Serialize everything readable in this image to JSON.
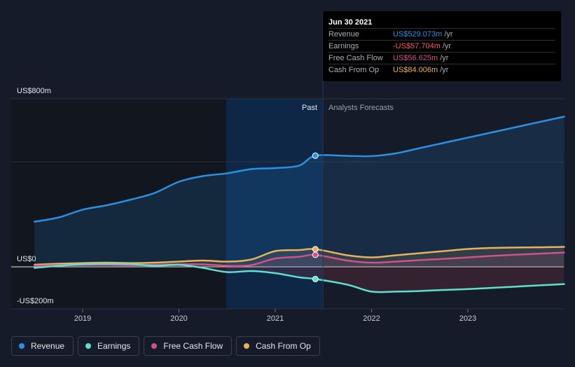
{
  "chart_data": {
    "type": "line",
    "y_axis": {
      "top_label": "US$800m",
      "zero_label": "US$0",
      "bottom_label": "-US$200m",
      "ylim": [
        -200,
        800
      ]
    },
    "x_ticks": [
      "2019",
      "2020",
      "2021",
      "2022",
      "2023"
    ],
    "period_labels": {
      "past": "Past",
      "forecast": "Analysts Forecasts"
    },
    "colors": {
      "revenue": "#2d8fe0",
      "earnings": "#5de0cc",
      "free_cash_flow": "#d0528a",
      "cash_from_op": "#e8b15e",
      "background": "#151b28"
    },
    "series": [
      {
        "name": "Revenue",
        "key": "revenue",
        "points": [
          [
            "2018-07",
            215
          ],
          [
            "2018-10",
            235
          ],
          [
            "2019-01",
            272
          ],
          [
            "2019-04",
            293
          ],
          [
            "2019-07",
            320
          ],
          [
            "2019-10",
            352
          ],
          [
            "2020-01",
            405
          ],
          [
            "2020-04",
            432
          ],
          [
            "2020-07",
            445
          ],
          [
            "2020-10",
            465
          ],
          [
            "2021-01",
            470
          ],
          [
            "2021-04",
            482
          ],
          [
            "2021-06",
            529
          ],
          [
            "2021-10",
            528
          ],
          [
            "2022-01",
            527
          ],
          [
            "2022-04",
            540
          ],
          [
            "2022-07",
            565
          ],
          [
            "2022-10",
            590
          ],
          [
            "2023-01",
            615
          ],
          [
            "2023-04",
            640
          ],
          [
            "2023-07",
            665
          ],
          [
            "2023-10",
            690
          ],
          [
            "2024-01",
            715
          ]
        ]
      },
      {
        "name": "Earnings",
        "key": "earnings",
        "points": [
          [
            "2018-07",
            -5
          ],
          [
            "2018-10",
            5
          ],
          [
            "2019-01",
            12
          ],
          [
            "2019-04",
            14
          ],
          [
            "2019-07",
            13
          ],
          [
            "2019-10",
            5
          ],
          [
            "2020-01",
            10
          ],
          [
            "2020-04",
            -5
          ],
          [
            "2020-07",
            -25
          ],
          [
            "2020-10",
            -20
          ],
          [
            "2021-01",
            -30
          ],
          [
            "2021-04",
            -50
          ],
          [
            "2021-06",
            -58
          ],
          [
            "2021-10",
            -85
          ],
          [
            "2022-01",
            -118
          ],
          [
            "2022-04",
            -118
          ],
          [
            "2022-07",
            -115
          ],
          [
            "2022-10",
            -110
          ],
          [
            "2023-01",
            -106
          ],
          [
            "2023-04",
            -100
          ],
          [
            "2023-07",
            -94
          ],
          [
            "2023-10",
            -88
          ],
          [
            "2024-01",
            -82
          ]
        ]
      },
      {
        "name": "Free Cash Flow",
        "key": "free_cash_flow",
        "points": [
          [
            "2018-07",
            5
          ],
          [
            "2018-10",
            8
          ],
          [
            "2019-01",
            10
          ],
          [
            "2019-04",
            10
          ],
          [
            "2019-07",
            8
          ],
          [
            "2019-10",
            10
          ],
          [
            "2020-01",
            12
          ],
          [
            "2020-04",
            12
          ],
          [
            "2020-07",
            5
          ],
          [
            "2020-10",
            8
          ],
          [
            "2021-01",
            40
          ],
          [
            "2021-04",
            48
          ],
          [
            "2021-06",
            57
          ],
          [
            "2021-10",
            30
          ],
          [
            "2022-01",
            20
          ],
          [
            "2022-04",
            25
          ],
          [
            "2022-07",
            32
          ],
          [
            "2022-10",
            38
          ],
          [
            "2023-01",
            45
          ],
          [
            "2023-04",
            52
          ],
          [
            "2023-07",
            58
          ],
          [
            "2023-10",
            63
          ],
          [
            "2024-01",
            68
          ]
        ]
      },
      {
        "name": "Cash From Op",
        "key": "cash_from_op",
        "points": [
          [
            "2018-07",
            10
          ],
          [
            "2018-10",
            15
          ],
          [
            "2019-01",
            18
          ],
          [
            "2019-04",
            20
          ],
          [
            "2019-07",
            18
          ],
          [
            "2019-10",
            20
          ],
          [
            "2020-01",
            25
          ],
          [
            "2020-04",
            30
          ],
          [
            "2020-07",
            25
          ],
          [
            "2020-10",
            35
          ],
          [
            "2021-01",
            75
          ],
          [
            "2021-04",
            80
          ],
          [
            "2021-06",
            84
          ],
          [
            "2021-10",
            55
          ],
          [
            "2022-01",
            45
          ],
          [
            "2022-04",
            55
          ],
          [
            "2022-07",
            65
          ],
          [
            "2022-10",
            75
          ],
          [
            "2023-01",
            85
          ],
          [
            "2023-04",
            90
          ],
          [
            "2023-07",
            92
          ],
          [
            "2023-10",
            93
          ],
          [
            "2024-01",
            95
          ]
        ]
      }
    ],
    "tooltip": {
      "date": "Jun 30 2021",
      "rows": [
        {
          "name": "Revenue",
          "value": "US$529.073m",
          "unit": "/yr",
          "key": "revenue"
        },
        {
          "name": "Earnings",
          "value": "-US$57.704m",
          "unit": "/yr",
          "key": "earnings"
        },
        {
          "name": "Free Cash Flow",
          "value": "US$56.625m",
          "unit": "/yr",
          "key": "free_cash_flow"
        },
        {
          "name": "Cash From Op",
          "value": "US$84.006m",
          "unit": "/yr",
          "key": "cash_from_op"
        }
      ]
    },
    "legend": [
      {
        "label": "Revenue",
        "key": "revenue"
      },
      {
        "label": "Earnings",
        "key": "earnings"
      },
      {
        "label": "Free Cash Flow",
        "key": "free_cash_flow"
      },
      {
        "label": "Cash From Op",
        "key": "cash_from_op"
      }
    ]
  }
}
